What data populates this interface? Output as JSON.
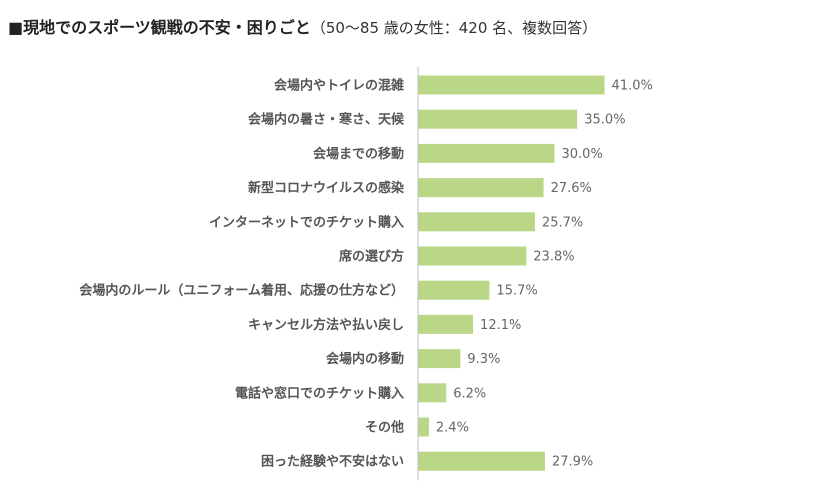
{
  "header": {
    "title": "■現地でのスポーツ観戦の不安・困りごと",
    "subtitle": "（50～85 歳の女性：420 名、複数回答）"
  },
  "colors": {
    "bar": "#b9d787",
    "axis": "#bfbfbf"
  },
  "chart_data": {
    "type": "bar",
    "orientation": "horizontal",
    "title": "■現地でのスポーツ観戦の不安・困りごと",
    "subtitle": "（50～85 歳の女性：420 名、複数回答）",
    "categories": [
      "会場内やトイレの混雑",
      "会場内の暑さ・寒さ、天候",
      "会場までの移動",
      "新型コロナウイルスの感染",
      "インターネットでのチケット購入",
      "席の選び方",
      "会場内のルール（ユニフォーム着用、応援の仕方など）",
      "キャンセル方法や払い戻し",
      "会場内の移動",
      "電話や窓口でのチケット購入",
      "その他",
      "困った経験や不安はない"
    ],
    "values": [
      41.0,
      35.0,
      30.0,
      27.6,
      25.7,
      23.8,
      15.7,
      12.1,
      9.3,
      6.2,
      2.4,
      27.9
    ],
    "value_labels": [
      "41.0%",
      "35.0%",
      "30.0%",
      "27.6%",
      "25.7%",
      "23.8%",
      "15.7%",
      "12.1%",
      "9.3%",
      "6.2%",
      "2.4%",
      "27.9%"
    ],
    "unit": "%",
    "xlim": [
      0,
      100
    ],
    "grid": false,
    "legend": "none"
  }
}
